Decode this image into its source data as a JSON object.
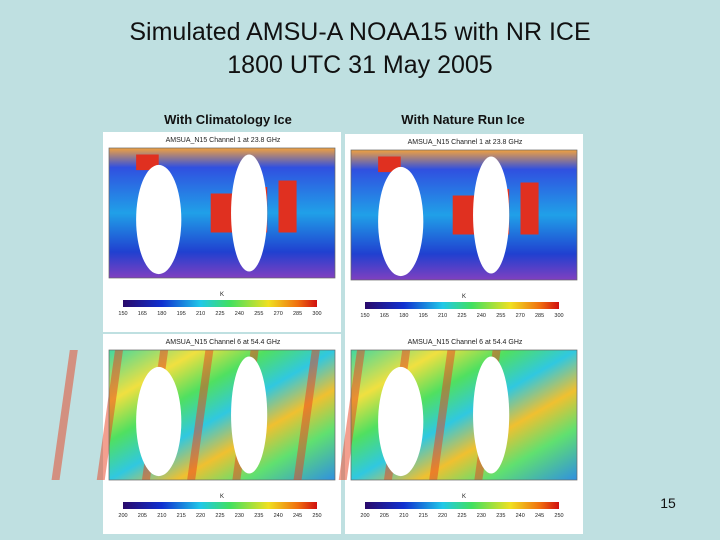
{
  "title_lines": [
    "Simulated AMSU-A NOAA15 with NR ICE",
    "1800 UTC 31 May 2005"
  ],
  "columns": [
    "With Climatology Ice",
    "With Nature Run Ice"
  ],
  "panels": [
    {
      "title": "AMSUA_N15 Channel 1 at 23.8 GHz",
      "unit": "K",
      "colorbar_ticks": [
        150,
        165,
        180,
        195,
        210,
        225,
        240,
        255,
        270,
        285,
        300
      ]
    },
    {
      "title": "AMSUA_N15 Channel 1 at 23.8 GHz",
      "unit": "K",
      "colorbar_ticks": [
        150,
        165,
        180,
        195,
        210,
        225,
        240,
        255,
        270,
        285,
        300
      ]
    },
    {
      "title": "AMSUA_N15 Channel 6 at 54.4 GHz",
      "unit": "K",
      "colorbar_ticks": [
        200,
        205,
        210,
        215,
        220,
        225,
        230,
        235,
        240,
        245,
        250
      ]
    },
    {
      "title": "AMSUA_N15 Channel 6 at 54.4 GHz",
      "unit": "K",
      "colorbar_ticks": [
        200,
        205,
        210,
        215,
        220,
        225,
        230,
        235,
        240,
        245,
        250
      ]
    }
  ],
  "page_number": "15"
}
